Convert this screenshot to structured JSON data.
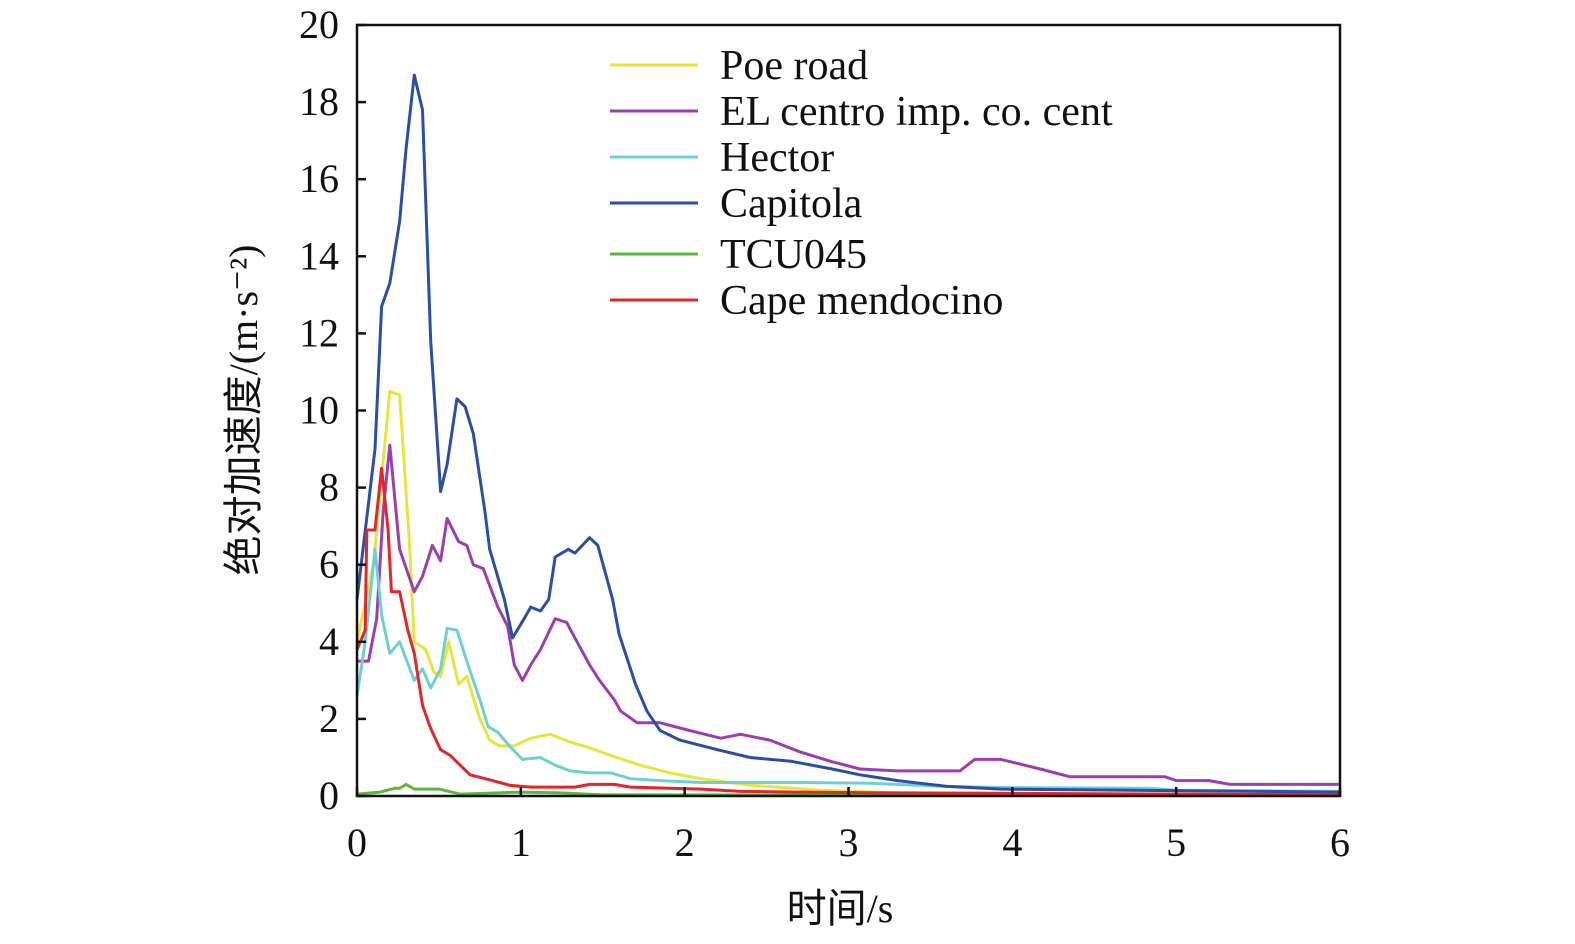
{
  "chart_data": {
    "type": "line",
    "title": "",
    "xlabel": "时间/s",
    "ylabel": "绝对加速度/(m·s⁻²)",
    "xlim": [
      0,
      6
    ],
    "ylim": [
      0,
      20
    ],
    "xticks": [
      "0",
      "1",
      "2",
      "3",
      "4",
      "5",
      "6"
    ],
    "yticks": [
      "0",
      "2",
      "4",
      "6",
      "8",
      "10",
      "12",
      "14",
      "16",
      "18",
      "20"
    ],
    "grid": false,
    "legend_position": "top-center",
    "series": [
      {
        "name": "Poe road",
        "color": "#e6e63a",
        "x": [
          0,
          0.1,
          0.2,
          0.26,
          0.32,
          0.35,
          0.42,
          0.47,
          0.51,
          0.56,
          0.62,
          0.67,
          0.75,
          0.81,
          0.87,
          0.96,
          1.06,
          1.18,
          1.3,
          1.42,
          1.55,
          1.73,
          1.91,
          2.1,
          2.4,
          2.83,
          3.3,
          6
        ],
        "y": [
          4,
          6,
          10.5,
          10.4,
          6.6,
          4.0,
          3.8,
          3.2,
          3.1,
          4.0,
          2.9,
          3.1,
          2.0,
          1.45,
          1.3,
          1.3,
          1.5,
          1.6,
          1.4,
          1.25,
          1.05,
          0.8,
          0.6,
          0.45,
          0.28,
          0.15,
          0.08,
          0.03
        ]
      },
      {
        "name": "EL centro imp. co. cent",
        "color": "#9b3fb0",
        "x": [
          0,
          0.07,
          0.12,
          0.16,
          0.2,
          0.26,
          0.35,
          0.4,
          0.46,
          0.51,
          0.55,
          0.62,
          0.67,
          0.71,
          0.77,
          0.86,
          0.92,
          0.96,
          1.01,
          1.06,
          1.12,
          1.21,
          1.28,
          1.33,
          1.42,
          1.48,
          1.57,
          1.61,
          1.71,
          1.85,
          2.03,
          2.22,
          2.34,
          2.52,
          2.7,
          2.89,
          3.07,
          3.3,
          3.68,
          3.77,
          3.93,
          4.17,
          4.35,
          4.93,
          5.0,
          5.2,
          5.33,
          6
        ],
        "y": [
          3.5,
          3.5,
          4.6,
          7.4,
          9.1,
          6.4,
          5.3,
          5.7,
          6.5,
          6.1,
          7.2,
          6.6,
          6.5,
          6.0,
          5.9,
          4.9,
          4.4,
          3.4,
          3.0,
          3.4,
          3.8,
          4.6,
          4.5,
          4.1,
          3.4,
          3.0,
          2.5,
          2.2,
          1.9,
          1.9,
          1.7,
          1.5,
          1.6,
          1.45,
          1.15,
          0.9,
          0.7,
          0.65,
          0.65,
          0.95,
          0.95,
          0.7,
          0.5,
          0.5,
          0.4,
          0.4,
          0.3,
          0.3
        ]
      },
      {
        "name": "Hector",
        "color": "#6fd0d4",
        "x": [
          0,
          0.05,
          0.11,
          0.15,
          0.2,
          0.26,
          0.35,
          0.4,
          0.45,
          0.51,
          0.55,
          0.61,
          0.67,
          0.75,
          0.8,
          0.86,
          0.93,
          1.01,
          1.12,
          1.21,
          1.3,
          1.42,
          1.55,
          1.67,
          1.85,
          2.1,
          2.7,
          3.13,
          3.6,
          3.93,
          4.84,
          5.0,
          6
        ],
        "y": [
          2.6,
          4.0,
          6.4,
          4.7,
          3.7,
          4.0,
          3.0,
          3.3,
          2.8,
          3.3,
          4.35,
          4.3,
          3.5,
          2.5,
          1.8,
          1.65,
          1.3,
          0.95,
          1.0,
          0.8,
          0.65,
          0.6,
          0.6,
          0.45,
          0.4,
          0.35,
          0.35,
          0.33,
          0.25,
          0.22,
          0.2,
          0.15,
          0.12
        ]
      },
      {
        "name": "Capitola",
        "color": "#2b4ea6",
        "x": [
          0,
          0.11,
          0.15,
          0.2,
          0.26,
          0.3,
          0.35,
          0.4,
          0.45,
          0.51,
          0.55,
          0.61,
          0.66,
          0.71,
          0.78,
          0.81,
          0.9,
          0.95,
          1.02,
          1.06,
          1.12,
          1.17,
          1.21,
          1.29,
          1.33,
          1.42,
          1.47,
          1.56,
          1.6,
          1.7,
          1.77,
          1.85,
          1.97,
          2.2,
          2.4,
          2.65,
          2.9,
          3.07,
          3.3,
          3.6,
          3.93,
          6
        ],
        "y": [
          5.1,
          9.0,
          12.7,
          13.3,
          14.9,
          16.8,
          18.7,
          17.8,
          11.8,
          7.9,
          8.6,
          10.3,
          10.1,
          9.4,
          7.4,
          6.4,
          5.1,
          4.1,
          4.6,
          4.9,
          4.8,
          5.1,
          6.2,
          6.4,
          6.3,
          6.7,
          6.5,
          5.1,
          4.2,
          2.9,
          2.2,
          1.7,
          1.45,
          1.2,
          1.0,
          0.9,
          0.7,
          0.55,
          0.4,
          0.25,
          0.18,
          0.1
        ]
      },
      {
        "name": "TCU045",
        "color": "#5cb83a",
        "x": [
          0,
          0.14,
          0.23,
          0.26,
          0.3,
          0.35,
          0.5,
          0.63,
          1.0,
          1.24,
          1.48,
          6
        ],
        "y": [
          0.05,
          0.1,
          0.2,
          0.2,
          0.3,
          0.18,
          0.18,
          0.05,
          0.1,
          0.08,
          0.03,
          0.01
        ]
      },
      {
        "name": "Cape mendocino",
        "color": "#e3262a",
        "x": [
          0,
          0.05,
          0.06,
          0.11,
          0.15,
          0.19,
          0.21,
          0.26,
          0.31,
          0.35,
          0.4,
          0.45,
          0.51,
          0.57,
          0.63,
          0.69,
          0.81,
          0.93,
          1.06,
          1.33,
          1.42,
          1.57,
          1.67,
          2.1,
          2.34,
          2.7,
          3.3,
          6
        ],
        "y": [
          3.8,
          4.3,
          6.9,
          6.9,
          8.5,
          6.9,
          5.3,
          5.3,
          4.3,
          3.7,
          2.35,
          1.75,
          1.2,
          1.05,
          0.8,
          0.55,
          0.42,
          0.28,
          0.23,
          0.23,
          0.3,
          0.3,
          0.23,
          0.18,
          0.12,
          0.1,
          0.08,
          0.03
        ]
      }
    ]
  }
}
